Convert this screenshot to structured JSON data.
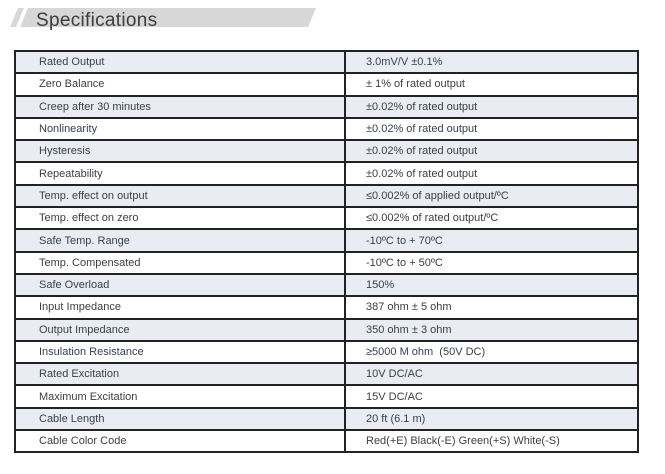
{
  "header": {
    "title": "Specifications"
  },
  "colors": {
    "band": "#d7d7d7",
    "title_text": "#3c3c3c",
    "table_border": "#222222",
    "cell_text": "#3b4046",
    "row_shaded": "#e9edf3",
    "row_plain": "#ffffff"
  },
  "table": {
    "rows": [
      {
        "label": "Rated Output",
        "value": "3.0mV/V ±0.1%"
      },
      {
        "label": "Zero Balance",
        "value": "± 1% of rated output"
      },
      {
        "label": "Creep after 30 minutes",
        "value": "±0.02% of rated output"
      },
      {
        "label": "Nonlinearity",
        "value": "±0.02% of rated output"
      },
      {
        "label": "Hysteresis",
        "value": "±0.02% of rated output"
      },
      {
        "label": "Repeatability",
        "value": "±0.02% of rated output"
      },
      {
        "label": "Temp. effect on output",
        "value": "≤0.002% of applied output/ºC"
      },
      {
        "label": "Temp. effect on zero",
        "value": "≤0.002% of rated output/ºC"
      },
      {
        "label": "Safe Temp. Range",
        "value": "-10ºC to + 70ºC"
      },
      {
        "label": "Temp. Compensated",
        "value": "-10ºC to + 50ºC"
      },
      {
        "label": "Safe Overload",
        "value": "150%"
      },
      {
        "label": "Input Impedance",
        "value": "387 ohm ± 5 ohm"
      },
      {
        "label": "Output Impedance",
        "value": "350 ohm ± 3 ohm"
      },
      {
        "label": "Insulation Resistance",
        "value": "≥5000 M ohm  (50V DC)"
      },
      {
        "label": "Rated Excitation",
        "value": "10V DC/AC"
      },
      {
        "label": "Maximum Excitation",
        "value": "15V DC/AC"
      },
      {
        "label": "Cable Length",
        "value": "20 ft (6.1 m)"
      },
      {
        "label": "Cable Color Code",
        "value": "Red(+E) Black(-E) Green(+S) White(-S)"
      }
    ]
  }
}
